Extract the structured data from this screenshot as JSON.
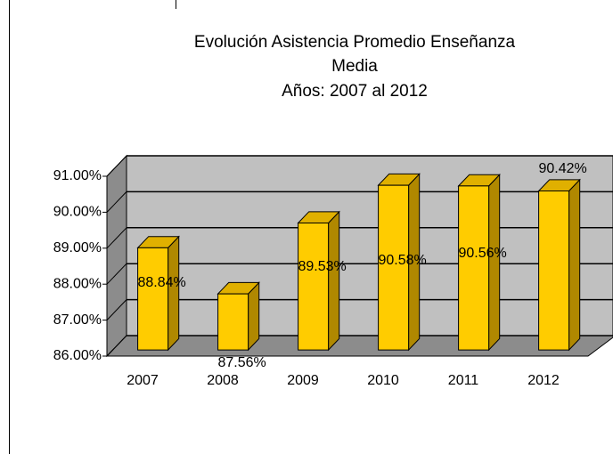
{
  "chart_data": {
    "type": "bar3d",
    "title": [
      "Evolución Asistencia Promedio Enseñanza",
      "Media",
      "Años:  2007 al 2012"
    ],
    "categories": [
      "2007",
      "2008",
      "2009",
      "2010",
      "2011",
      "2012"
    ],
    "values": [
      88.84,
      87.56,
      89.53,
      90.58,
      90.56,
      90.42
    ],
    "value_labels": [
      "88.84%",
      "87.56%",
      "89.53%",
      "90.58%",
      "90.56%",
      "90.42%"
    ],
    "color": "#ffcc00",
    "ylim": [
      86,
      91
    ],
    "yticks": [
      {
        "value": 86,
        "label": "86.00%"
      },
      {
        "value": 87,
        "label": "87.00%"
      },
      {
        "value": 88,
        "label": "88.00%"
      },
      {
        "value": 89,
        "label": "89.00%"
      },
      {
        "value": 90,
        "label": "90.00%"
      },
      {
        "value": 91,
        "label": "91.00%"
      }
    ],
    "grid": true
  }
}
